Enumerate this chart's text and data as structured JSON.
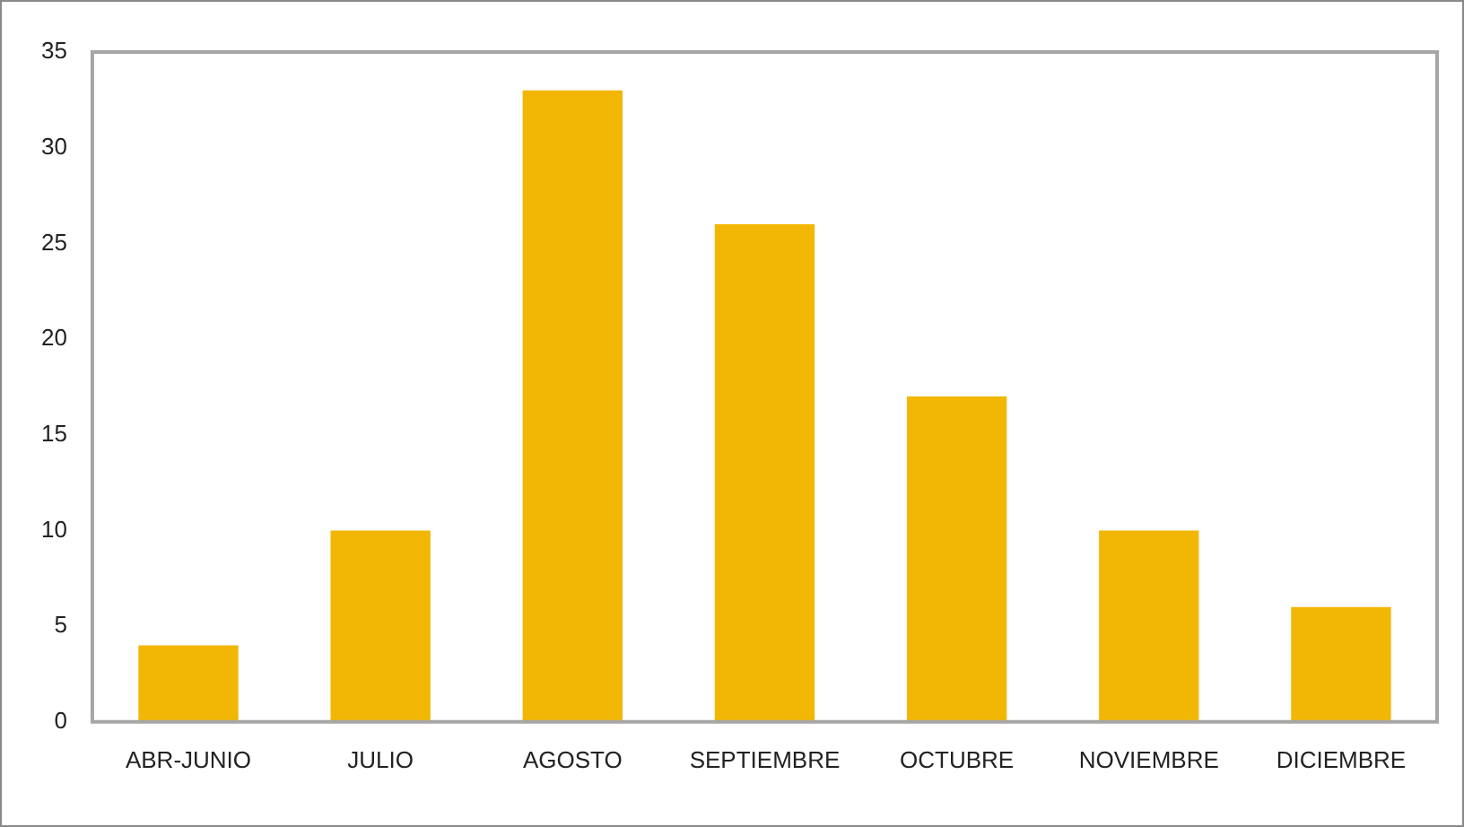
{
  "chart_data": {
    "type": "bar",
    "categories": [
      "ABR-JUNIO",
      "JULIO",
      "AGOSTO",
      "SEPTIEMBRE",
      "OCTUBRE",
      "NOVIEMBRE",
      "DICIEMBRE"
    ],
    "values": [
      4,
      10,
      33,
      26,
      17,
      10,
      6
    ],
    "color": "#f2b705",
    "ylim": [
      0,
      35
    ],
    "yticks": [
      0,
      5,
      10,
      15,
      20,
      25,
      30,
      35
    ],
    "grid": false,
    "legend": false
  }
}
